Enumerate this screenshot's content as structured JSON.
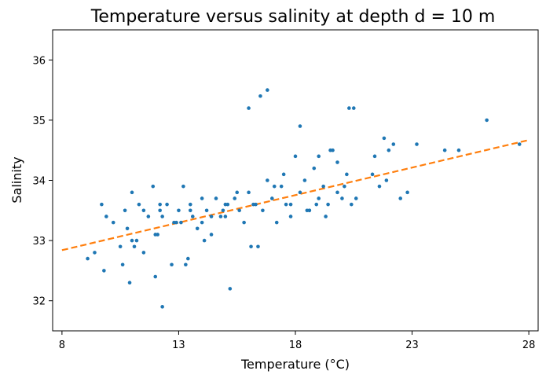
{
  "chart_data": {
    "type": "scatter",
    "title": "Temperature versus salinity at depth d = 10 m",
    "xlabel": "Temperature (°C)",
    "ylabel": "Salinity",
    "xlim": [
      7.6,
      28.4
    ],
    "ylim": [
      31.5,
      36.5
    ],
    "xticks": [
      8,
      13,
      18,
      23,
      28
    ],
    "yticks": [
      32,
      33,
      34,
      35,
      36
    ],
    "grid": false,
    "colors": {
      "points": "#1f77b4",
      "fit": "#ff7f0e"
    },
    "series": [
      {
        "kind": "points",
        "x": [
          9.1,
          9.4,
          9.9,
          9.8,
          10.2,
          10.6,
          10.7,
          10.9,
          11.0,
          10.8,
          11.1,
          11.3,
          11.2,
          11.5,
          11.7,
          11.9,
          12.0,
          12.2,
          12.3,
          12.1,
          12.5,
          12.7,
          12.9,
          13.0,
          13.2,
          13.4,
          13.6,
          13.5,
          13.8,
          14.0,
          14.2,
          14.4,
          14.6,
          14.8,
          15.0,
          15.2,
          15.4,
          15.6,
          15.8,
          16.0,
          16.2,
          16.4,
          16.6,
          16.8,
          17.0,
          17.2,
          17.4,
          17.6,
          17.8,
          18.0,
          18.2,
          18.4,
          18.6,
          18.8,
          19.0,
          19.2,
          19.4,
          19.6,
          19.8,
          20.0,
          20.2,
          20.4,
          20.6,
          21.4,
          21.6,
          21.8,
          22.0,
          22.2,
          22.8,
          23.2,
          24.4,
          25.0,
          26.2,
          27.6,
          11.5,
          12.0,
          12.2,
          13.1,
          13.5,
          14.0,
          15.0,
          16.0,
          16.5,
          16.8,
          17.8,
          18.2,
          18.6,
          19.0,
          19.3,
          19.8,
          20.3,
          20.5,
          16.1,
          15.1,
          12.3,
          11.0,
          10.5,
          9.7,
          13.3,
          14.4,
          14.1,
          17.5,
          18.9,
          19.5,
          20.1,
          21.9,
          22.5,
          21.3,
          14.9,
          15.5,
          16.3,
          17.1,
          18.5,
          12.8
        ],
        "y": [
          32.7,
          32.8,
          33.4,
          32.5,
          33.3,
          32.6,
          33.5,
          32.3,
          33.8,
          33.2,
          32.9,
          33.6,
          33.0,
          32.8,
          33.4,
          33.9,
          32.4,
          33.5,
          31.9,
          33.1,
          33.6,
          32.6,
          33.3,
          33.5,
          33.9,
          32.7,
          33.4,
          33.6,
          33.2,
          33.3,
          33.5,
          33.1,
          33.7,
          33.4,
          33.6,
          32.2,
          33.7,
          33.5,
          33.3,
          33.8,
          33.6,
          32.9,
          33.5,
          34.0,
          33.7,
          33.3,
          33.9,
          33.6,
          33.4,
          34.4,
          33.8,
          34.0,
          33.5,
          34.2,
          33.7,
          33.9,
          33.6,
          34.5,
          33.8,
          33.7,
          34.1,
          33.6,
          33.7,
          34.4,
          33.9,
          34.7,
          34.5,
          34.6,
          33.8,
          34.6,
          34.5,
          34.5,
          35.0,
          34.6,
          33.5,
          33.1,
          33.6,
          33.3,
          33.5,
          33.7,
          33.4,
          35.2,
          35.4,
          35.5,
          33.6,
          34.9,
          33.5,
          34.4,
          33.4,
          34.3,
          35.2,
          35.2,
          32.9,
          33.6,
          33.4,
          33.0,
          32.9,
          33.6,
          32.6,
          33.4,
          33.0,
          34.1,
          33.6,
          34.5,
          33.9,
          34.0,
          33.7,
          34.1,
          33.5,
          33.8,
          33.6,
          33.9,
          33.5,
          33.3
        ]
      },
      {
        "kind": "fit",
        "style": "dashed",
        "x": [
          8,
          28
        ],
        "y": [
          32.84,
          34.67
        ]
      }
    ]
  }
}
